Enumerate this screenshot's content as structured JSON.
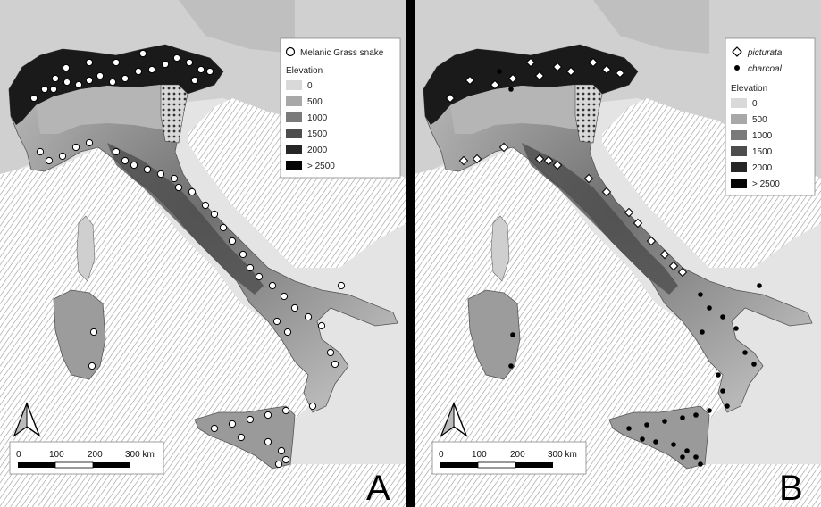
{
  "panels": [
    {
      "id": "A",
      "label": "A",
      "legend": {
        "items": [
          {
            "symbol": "open-circle",
            "label": "Melanic Grass snake"
          }
        ],
        "elevation_title": "Elevation",
        "elevation_classes": [
          {
            "label": "0",
            "color": "#d9d9d9"
          },
          {
            "label": "500",
            "color": "#a8a8a8"
          },
          {
            "label": "1000",
            "color": "#7a7a7a"
          },
          {
            "label": "1500",
            "color": "#4d4d4d"
          },
          {
            "label": "2000",
            "color": "#262626"
          },
          {
            "label": "> 2500",
            "color": "#050505"
          }
        ]
      },
      "scale_bar": {
        "ticks": [
          "0",
          "100",
          "200",
          "300 km"
        ]
      },
      "north_arrow": "north-arrow-icon"
    },
    {
      "id": "B",
      "label": "B",
      "legend": {
        "items": [
          {
            "symbol": "open-diamond",
            "label": "picturata"
          },
          {
            "symbol": "black-dot",
            "label": "charcoal"
          }
        ],
        "elevation_title": "Elevation",
        "elevation_classes": [
          {
            "label": "0",
            "color": "#d9d9d9"
          },
          {
            "label": "500",
            "color": "#a8a8a8"
          },
          {
            "label": "1000",
            "color": "#7a7a7a"
          },
          {
            "label": "1500",
            "color": "#4d4d4d"
          },
          {
            "label": "2000",
            "color": "#262626"
          },
          {
            "label": "> 2500",
            "color": "#050505"
          }
        ]
      },
      "scale_bar": {
        "ticks": [
          "0",
          "100",
          "200",
          "300 km"
        ]
      },
      "north_arrow": "north-arrow-icon"
    }
  ],
  "colors": {
    "sea_hatch": "#9a9a9a",
    "land_low": "#bdbdbd",
    "land_mid": "#8a8a8a",
    "land_high": "#3a3a3a",
    "alps": "#111111"
  }
}
